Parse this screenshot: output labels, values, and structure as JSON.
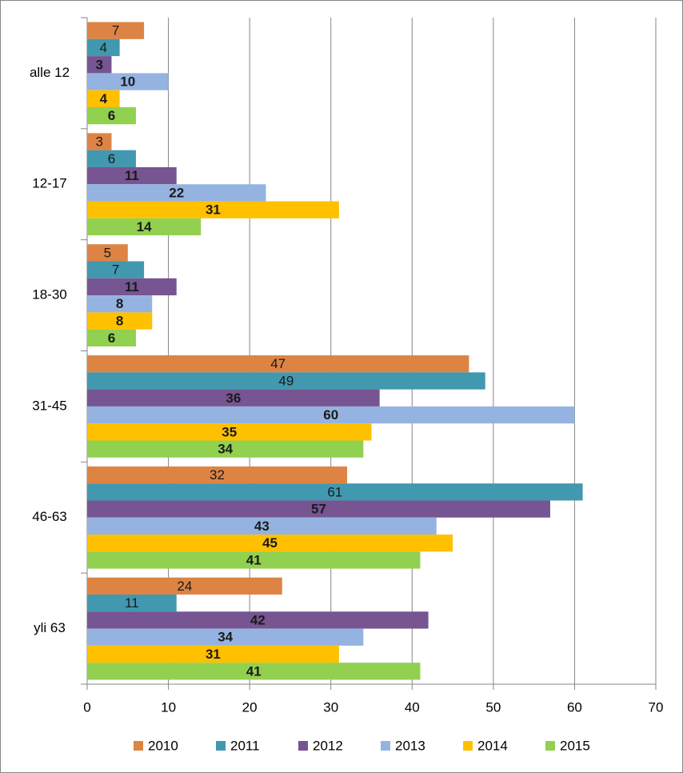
{
  "chart_data": {
    "type": "hbar",
    "categories": [
      "alle 12",
      "12-17",
      "18-30",
      "31-45",
      "46-63",
      "yli 63"
    ],
    "series": [
      {
        "name": "2010",
        "color": "#dd8444",
        "values": [
          7,
          3,
          5,
          47,
          32,
          24
        ]
      },
      {
        "name": "2011",
        "color": "#4198af",
        "values": [
          4,
          6,
          7,
          49,
          61,
          11
        ]
      },
      {
        "name": "2012",
        "color": "#765592",
        "values": [
          3,
          11,
          11,
          36,
          57,
          42
        ]
      },
      {
        "name": "2013",
        "color": "#95b3e1",
        "values": [
          10,
          22,
          8,
          60,
          43,
          34
        ]
      },
      {
        "name": "2014",
        "color": "#ffc000",
        "values": [
          4,
          31,
          8,
          35,
          45,
          31
        ]
      },
      {
        "name": "2015",
        "color": "#92d050",
        "values": [
          6,
          14,
          6,
          34,
          41,
          41
        ]
      }
    ],
    "xlim": [
      0,
      70
    ],
    "xticks": [
      0,
      10,
      20,
      30,
      40,
      50,
      60,
      70
    ],
    "grid": true,
    "legend": "bottom"
  }
}
